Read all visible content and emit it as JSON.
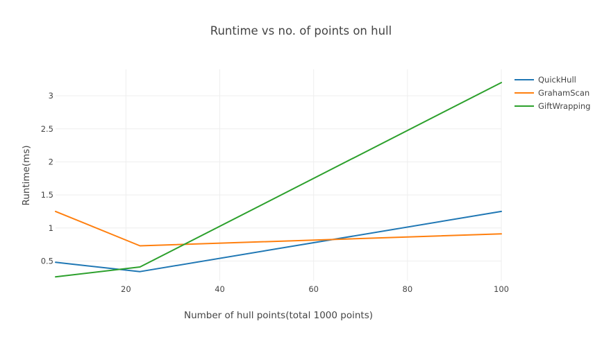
{
  "chart_data": {
    "type": "line",
    "title": "Runtime vs no. of points on hull",
    "xlabel": "Number of hull points(total 1000 points)",
    "ylabel": "Runtime(ms)",
    "xlim": [
      5,
      100
    ],
    "ylim": [
      0.2,
      3.4
    ],
    "xticks": [
      20,
      40,
      60,
      80,
      100
    ],
    "yticks": [
      0.5,
      1,
      1.5,
      2,
      2.5,
      3
    ],
    "xtick_labels": [
      "20",
      "40",
      "60",
      "80",
      "100"
    ],
    "ytick_labels": [
      "0.5",
      "1",
      "1.5",
      "2",
      "2.5",
      "3"
    ],
    "grid": true,
    "legend_position": "top-right",
    "series": [
      {
        "name": "QuickHull",
        "color": "#1f77b4",
        "x": [
          5,
          23,
          100
        ],
        "y": [
          0.48,
          0.34,
          1.25
        ]
      },
      {
        "name": "GrahamScan",
        "color": "#ff7f0e",
        "x": [
          5,
          23,
          100
        ],
        "y": [
          1.25,
          0.73,
          0.91
        ]
      },
      {
        "name": "GiftWrapping",
        "color": "#2ca02c",
        "x": [
          5,
          23,
          100
        ],
        "y": [
          0.26,
          0.41,
          3.2
        ]
      }
    ]
  }
}
